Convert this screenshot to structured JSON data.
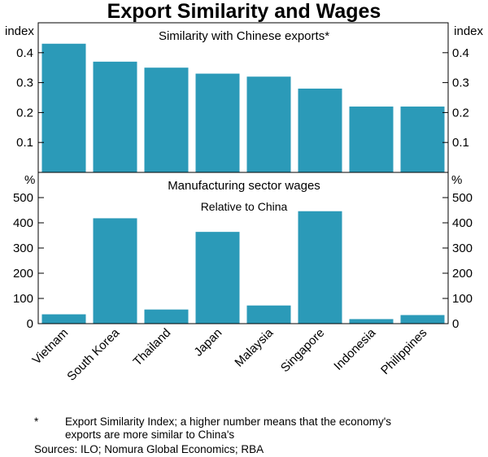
{
  "chart_data": {
    "type": "bar",
    "title": "Export Similarity and Wages",
    "categories": [
      "Vietnam",
      "South Korea",
      "Thailand",
      "Japan",
      "Malaysia",
      "Singapore",
      "Indonesia",
      "Philippines"
    ],
    "panels": [
      {
        "title": "Similarity with Chinese exports*",
        "subtitle": "",
        "unit": "index",
        "ylim": [
          0,
          0.5
        ],
        "ticks": [
          0.1,
          0.2,
          0.3,
          0.4
        ],
        "tick_labels": [
          "0.1",
          "0.2",
          "0.3",
          "0.4"
        ],
        "series": [
          {
            "name": "Export similarity index",
            "values": [
              0.43,
              0.37,
              0.35,
              0.33,
              0.32,
              0.28,
              0.22,
              0.22
            ]
          }
        ]
      },
      {
        "title": "Manufacturing sector wages",
        "subtitle": "Relative to China",
        "unit": "%",
        "ylim": [
          0,
          600
        ],
        "ticks": [
          0,
          100,
          200,
          300,
          400,
          500
        ],
        "tick_labels": [
          "0",
          "100",
          "200",
          "300",
          "400",
          "500"
        ],
        "series": [
          {
            "name": "Wages relative to China",
            "values": [
              37,
              418,
              56,
              364,
              72,
              446,
              18,
              34
            ]
          }
        ]
      }
    ],
    "bar_color": "#2b9ab8"
  },
  "footnote": {
    "marker": "*",
    "line1": "Export Similarity Index; a higher number means that the economy's",
    "line2": "exports are more similar to China's"
  },
  "sources": "Sources: ILO; Nomura Global Economics; RBA"
}
